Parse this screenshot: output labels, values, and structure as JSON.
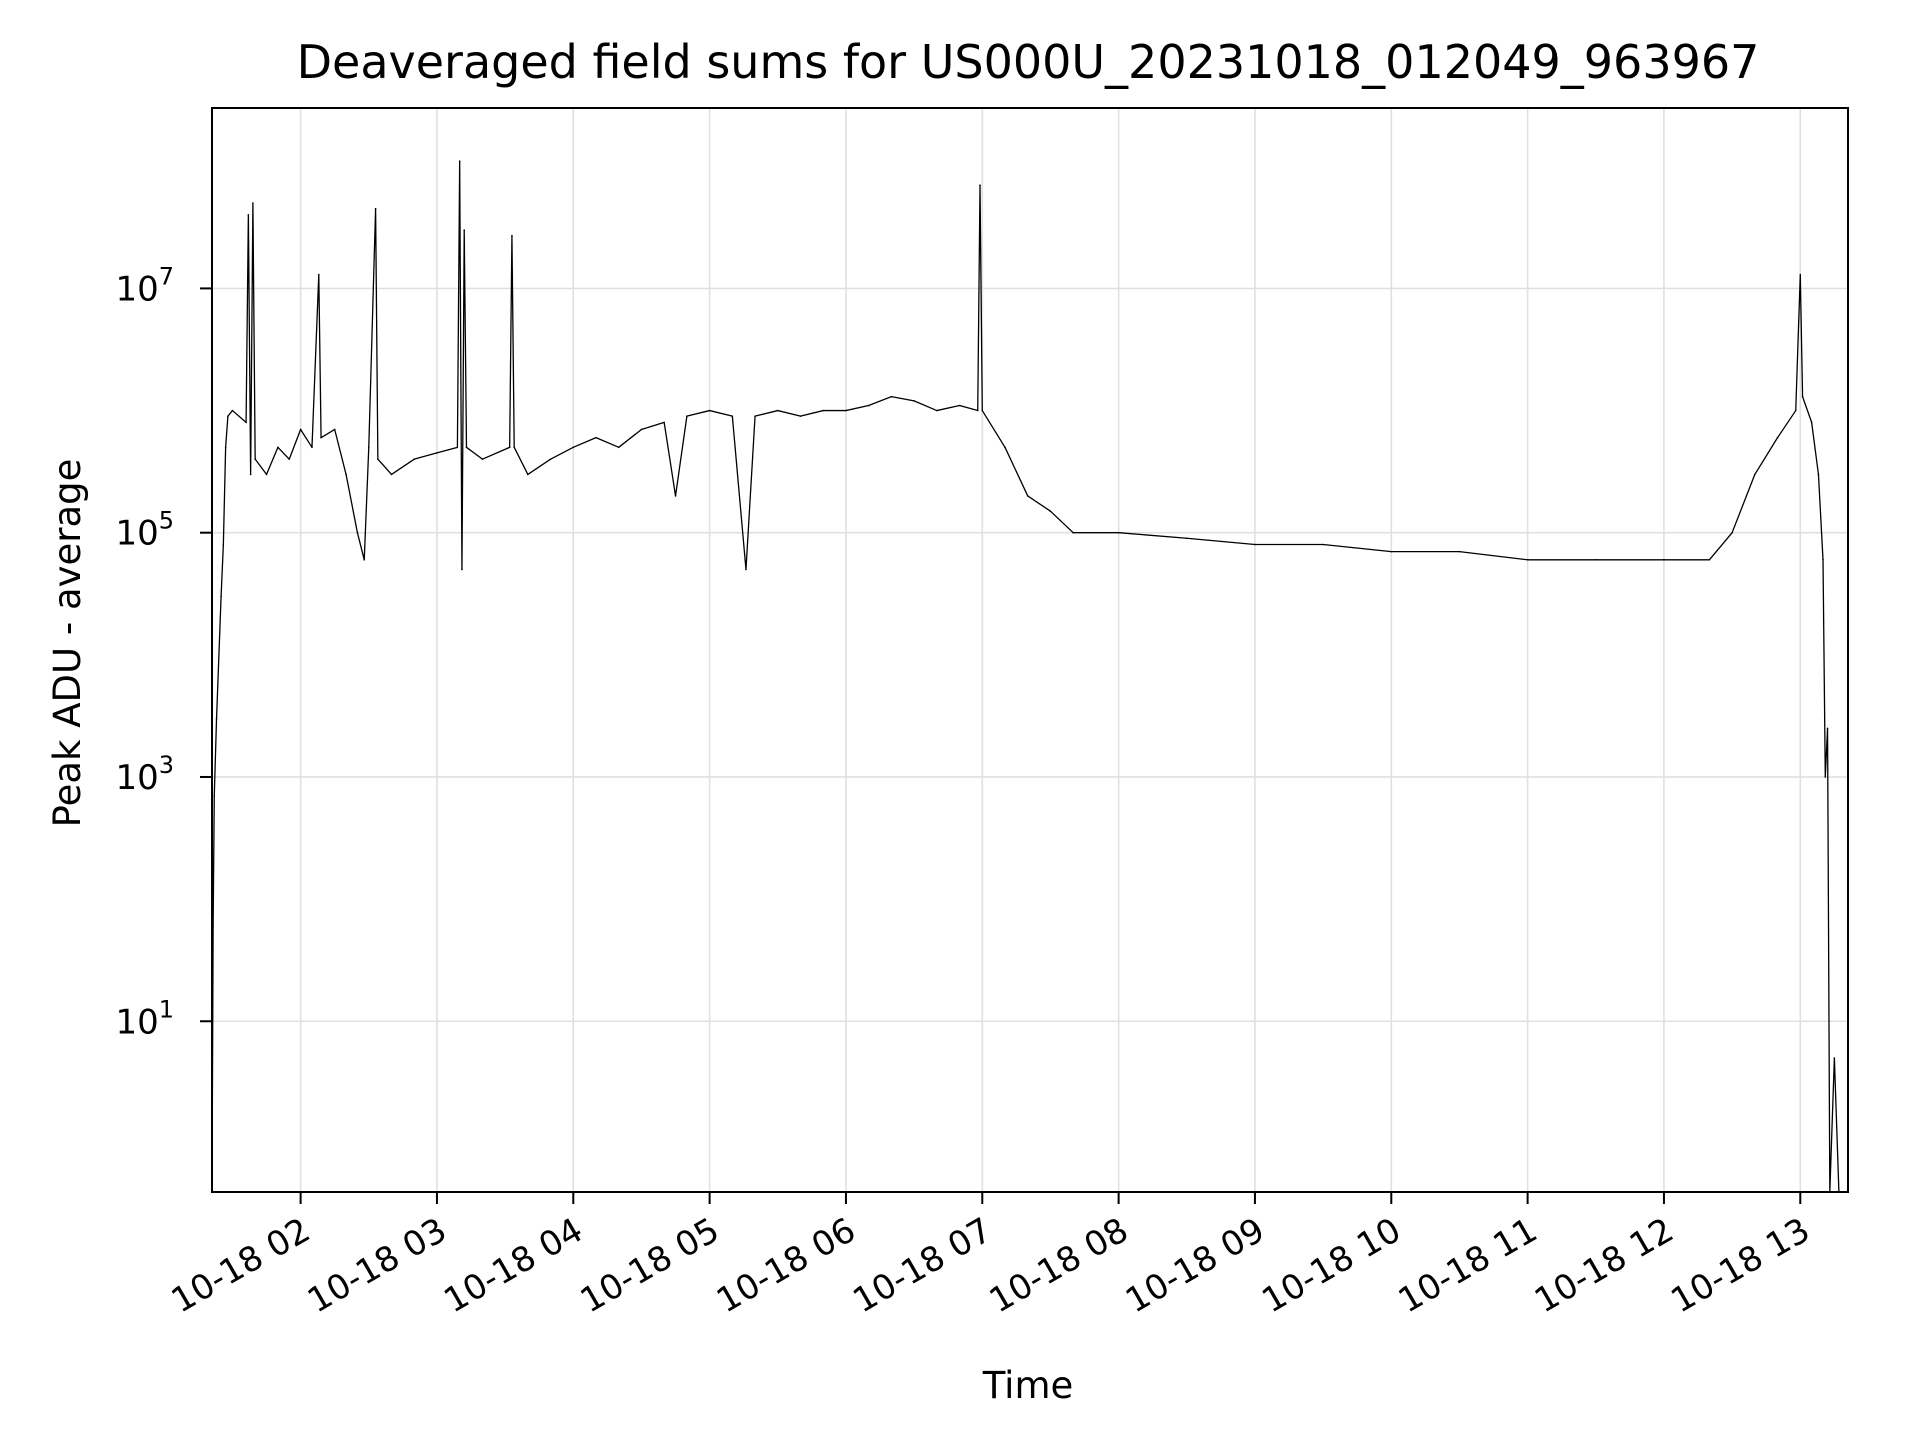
{
  "chart_data": {
    "type": "line",
    "title": "Deaveraged field sums for US000U_20231018_012049_963967",
    "xlabel": "Time",
    "ylabel": "Peak ADU - average",
    "x_axis_type": "time",
    "xlim": [
      "2023-10-18T01:21",
      "2023-10-18T13:21"
    ],
    "xticks": [
      {
        "value": "2023-10-18T02:00",
        "label": "10-18 02"
      },
      {
        "value": "2023-10-18T03:00",
        "label": "10-18 03"
      },
      {
        "value": "2023-10-18T04:00",
        "label": "10-18 04"
      },
      {
        "value": "2023-10-18T05:00",
        "label": "10-18 05"
      },
      {
        "value": "2023-10-18T06:00",
        "label": "10-18 06"
      },
      {
        "value": "2023-10-18T07:00",
        "label": "10-18 07"
      },
      {
        "value": "2023-10-18T08:00",
        "label": "10-18 08"
      },
      {
        "value": "2023-10-18T09:00",
        "label": "10-18 09"
      },
      {
        "value": "2023-10-18T10:00",
        "label": "10-18 10"
      },
      {
        "value": "2023-10-18T11:00",
        "label": "10-18 11"
      },
      {
        "value": "2023-10-18T12:00",
        "label": "10-18 12"
      },
      {
        "value": "2023-10-18T13:00",
        "label": "10-18 13"
      }
    ],
    "y_scale": "log",
    "ylim": [
      0.4,
      300000000
    ],
    "yticks": [
      {
        "value": 10,
        "base": "10",
        "exp": "1"
      },
      {
        "value": 1000,
        "base": "10",
        "exp": "3"
      },
      {
        "value": 100000,
        "base": "10",
        "exp": "5"
      },
      {
        "value": 10000000,
        "base": "10",
        "exp": "7"
      }
    ],
    "grid": true,
    "series": [
      {
        "color": "#000000",
        "points": [
          [
            "2023-10-18T01:21",
            0.4
          ],
          [
            "2023-10-18T01:21:30",
            60
          ],
          [
            "2023-10-18T01:22",
            700
          ],
          [
            "2023-10-18T01:23",
            3000
          ],
          [
            "2023-10-18T01:25",
            30000
          ],
          [
            "2023-10-18T01:26",
            80000
          ],
          [
            "2023-10-18T01:27",
            500000
          ],
          [
            "2023-10-18T01:28",
            900000
          ],
          [
            "2023-10-18T01:30",
            1000000
          ],
          [
            "2023-10-18T01:36",
            800000
          ],
          [
            "2023-10-18T01:37",
            40000000
          ],
          [
            "2023-10-18T01:38",
            300000
          ],
          [
            "2023-10-18T01:39",
            50000000
          ],
          [
            "2023-10-18T01:40",
            400000
          ],
          [
            "2023-10-18T01:45",
            300000
          ],
          [
            "2023-10-18T01:50",
            500000
          ],
          [
            "2023-10-18T01:55",
            400000
          ],
          [
            "2023-10-18T02:00",
            700000
          ],
          [
            "2023-10-18T02:05",
            500000
          ],
          [
            "2023-10-18T02:08",
            13000000
          ],
          [
            "2023-10-18T02:09",
            600000
          ],
          [
            "2023-10-18T02:15",
            700000
          ],
          [
            "2023-10-18T02:20",
            300000
          ],
          [
            "2023-10-18T02:25",
            100000
          ],
          [
            "2023-10-18T02:28",
            60000
          ],
          [
            "2023-10-18T02:30",
            500000
          ],
          [
            "2023-10-18T02:33",
            45000000
          ],
          [
            "2023-10-18T02:34",
            400000
          ],
          [
            "2023-10-18T02:40",
            300000
          ],
          [
            "2023-10-18T02:50",
            400000
          ],
          [
            "2023-10-18T03:00",
            450000
          ],
          [
            "2023-10-18T03:09",
            500000
          ],
          [
            "2023-10-18T03:10",
            110000000
          ],
          [
            "2023-10-18T03:11",
            50000
          ],
          [
            "2023-10-18T03:12",
            30000000
          ],
          [
            "2023-10-18T03:13",
            500000
          ],
          [
            "2023-10-18T03:20",
            400000
          ],
          [
            "2023-10-18T03:32",
            500000
          ],
          [
            "2023-10-18T03:33",
            27000000
          ],
          [
            "2023-10-18T03:34",
            500000
          ],
          [
            "2023-10-18T03:40",
            300000
          ],
          [
            "2023-10-18T03:50",
            400000
          ],
          [
            "2023-10-18T04:00",
            500000
          ],
          [
            "2023-10-18T04:10",
            600000
          ],
          [
            "2023-10-18T04:20",
            500000
          ],
          [
            "2023-10-18T04:30",
            700000
          ],
          [
            "2023-10-18T04:40",
            800000
          ],
          [
            "2023-10-18T04:45",
            200000
          ],
          [
            "2023-10-18T04:50",
            900000
          ],
          [
            "2023-10-18T05:00",
            1000000
          ],
          [
            "2023-10-18T05:10",
            900000
          ],
          [
            "2023-10-18T05:16",
            50000
          ],
          [
            "2023-10-18T05:20",
            900000
          ],
          [
            "2023-10-18T05:30",
            1000000
          ],
          [
            "2023-10-18T05:40",
            900000
          ],
          [
            "2023-10-18T05:50",
            1000000
          ],
          [
            "2023-10-18T06:00",
            1000000
          ],
          [
            "2023-10-18T06:10",
            1100000
          ],
          [
            "2023-10-18T06:20",
            1300000
          ],
          [
            "2023-10-18T06:30",
            1200000
          ],
          [
            "2023-10-18T06:40",
            1000000
          ],
          [
            "2023-10-18T06:50",
            1100000
          ],
          [
            "2023-10-18T06:58",
            1000000
          ],
          [
            "2023-10-18T06:59",
            70000000
          ],
          [
            "2023-10-18T07:00",
            1000000
          ],
          [
            "2023-10-18T07:10",
            500000
          ],
          [
            "2023-10-18T07:20",
            200000
          ],
          [
            "2023-10-18T07:30",
            150000
          ],
          [
            "2023-10-18T07:40",
            100000
          ],
          [
            "2023-10-18T08:00",
            100000
          ],
          [
            "2023-10-18T08:30",
            90000
          ],
          [
            "2023-10-18T09:00",
            80000
          ],
          [
            "2023-10-18T09:30",
            80000
          ],
          [
            "2023-10-18T10:00",
            70000
          ],
          [
            "2023-10-18T10:30",
            70000
          ],
          [
            "2023-10-18T11:00",
            60000
          ],
          [
            "2023-10-18T11:30",
            60000
          ],
          [
            "2023-10-18T12:00",
            60000
          ],
          [
            "2023-10-18T12:20",
            60000
          ],
          [
            "2023-10-18T12:30",
            100000
          ],
          [
            "2023-10-18T12:40",
            300000
          ],
          [
            "2023-10-18T12:50",
            600000
          ],
          [
            "2023-10-18T12:58",
            1000000
          ],
          [
            "2023-10-18T13:00",
            13000000
          ],
          [
            "2023-10-18T13:01",
            1300000
          ],
          [
            "2023-10-18T13:05",
            800000
          ],
          [
            "2023-10-18T13:08",
            300000
          ],
          [
            "2023-10-18T13:10",
            60000
          ],
          [
            "2023-10-18T13:11",
            1000
          ],
          [
            "2023-10-18T13:12",
            2500
          ],
          [
            "2023-10-18T13:13",
            0.4
          ],
          [
            "2023-10-18T13:15",
            5
          ],
          [
            "2023-10-18T13:17",
            0.4
          ],
          [
            "2023-10-18T13:20",
            0.4
          ]
        ]
      }
    ]
  }
}
